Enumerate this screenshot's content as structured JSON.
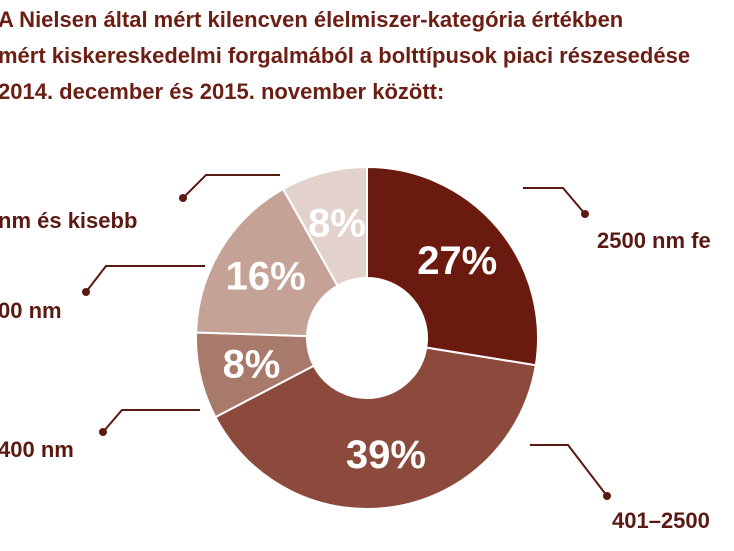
{
  "title_lines": [
    "A Nielsen által mért kilencven élelmiszer-kategória értékben",
    "mért kiskereskedelmi forgalmából a bolttípusok piaci részesedése",
    "2014. december és 2015. november között:"
  ],
  "chart_data": {
    "type": "pie",
    "donut": true,
    "title": "A Nielsen által mért kilencven élelmiszer-kategória értékben mért kiskereskedelmi forgalmából a bolttípusok piaci részesedése 2014. december és 2015. november között:",
    "slices": [
      {
        "label": "2500 nm fe",
        "value": 27,
        "value_label": "27%",
        "color": "#6b1a10"
      },
      {
        "label": "401–2500",
        "value": 39,
        "value_label": "39%",
        "color": "#8b4a3c"
      },
      {
        "label": "400 nm",
        "value": 8,
        "value_label": "8%",
        "color": "#a87a6c"
      },
      {
        "label": "00 nm",
        "value": 16,
        "value_label": "16%",
        "color": "#c4a295"
      },
      {
        "label": "nm és kisebb",
        "value": 8,
        "value_label": "8%",
        "color": "#e3d2cb"
      }
    ],
    "start_angle_deg": 0,
    "direction": "clockwise",
    "legend": "callout labels"
  },
  "colors": {
    "title": "#6b1f14",
    "label": "#5a1a12",
    "leader": "#5a1a12"
  }
}
